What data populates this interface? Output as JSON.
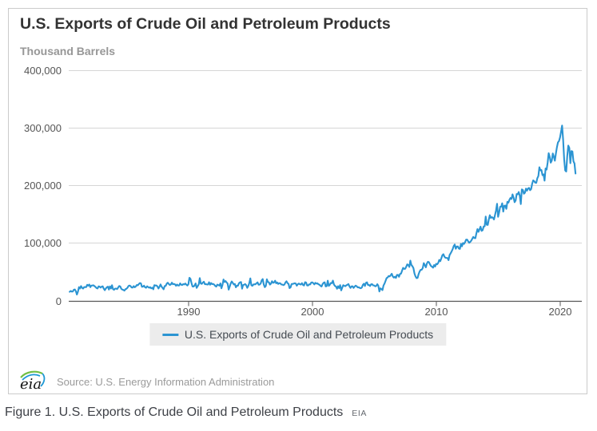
{
  "card": {
    "title": "U.S. Exports of Crude Oil and Petroleum Products",
    "units_label": "Thousand Barrels",
    "legend": {
      "label": "U.S. Exports of Crude Oil and Petroleum Products"
    },
    "source": "Source: U.S. Energy Information Administration",
    "logo_text": "eia"
  },
  "caption": {
    "text": "Figure 1. U.S. Exports of Crude Oil and Petroleum Products",
    "suffix": "EIA"
  },
  "chart_data": {
    "type": "line",
    "title": "U.S. Exports of Crude Oil and Petroleum Products",
    "ylabel": "Thousand Barrels",
    "ylim": [
      0,
      400000
    ],
    "yticks": [
      0,
      100000,
      200000,
      300000,
      400000
    ],
    "ytick_labels": [
      "0",
      "100,000",
      "200,000",
      "300,000",
      "400,000"
    ],
    "xticks": [
      1990,
      2000,
      2010,
      2020
    ],
    "x_range": [
      1980.4,
      2021.25
    ],
    "frequency": "monthly",
    "grid": "horizontal",
    "legend_position": "bottom-center",
    "series": [
      {
        "name": "U.S. Exports of Crude Oil and Petroleum Products",
        "color": "#2b94d2",
        "anchors": [
          [
            1980.4,
            16000
          ],
          [
            1981,
            21000
          ],
          [
            1982,
            26000
          ],
          [
            1983,
            22000
          ],
          [
            1984,
            24000
          ],
          [
            1985,
            22000
          ],
          [
            1986,
            27000
          ],
          [
            1987,
            25000
          ],
          [
            1988,
            27000
          ],
          [
            1989,
            29000
          ],
          [
            1989.9,
            30000
          ],
          [
            1990.1,
            40000
          ],
          [
            1990.3,
            28000
          ],
          [
            1991,
            31000
          ],
          [
            1992,
            29000
          ],
          [
            1993,
            31000
          ],
          [
            1994,
            28000
          ],
          [
            1995,
            28000
          ],
          [
            1996,
            30000
          ],
          [
            1997,
            31000
          ],
          [
            1998,
            30000
          ],
          [
            1999,
            29000
          ],
          [
            2000,
            31000
          ],
          [
            2001,
            30000
          ],
          [
            2002,
            27000
          ],
          [
            2003,
            27000
          ],
          [
            2004,
            26000
          ],
          [
            2005,
            30000
          ],
          [
            2005.65,
            21000
          ],
          [
            2006,
            40000
          ],
          [
            2007,
            46000
          ],
          [
            2007.9,
            66000
          ],
          [
            2008.4,
            42000
          ],
          [
            2009,
            62000
          ],
          [
            2010,
            64000
          ],
          [
            2011,
            84000
          ],
          [
            2012,
            98000
          ],
          [
            2013,
            113000
          ],
          [
            2014,
            132000
          ],
          [
            2015,
            158000
          ],
          [
            2016,
            175000
          ],
          [
            2017,
            188000
          ],
          [
            2018,
            215000
          ],
          [
            2018.5,
            222000
          ],
          [
            2018.75,
            205000
          ],
          [
            2019.05,
            250000
          ],
          [
            2019.5,
            252000
          ],
          [
            2019.83,
            272000
          ],
          [
            2020.18,
            308000
          ],
          [
            2020.3,
            252000
          ],
          [
            2020.45,
            212000
          ],
          [
            2020.58,
            260000
          ],
          [
            2020.7,
            276000
          ],
          [
            2020.82,
            243000
          ],
          [
            2020.93,
            270000
          ],
          [
            2021.05,
            250000
          ],
          [
            2021.15,
            238000
          ],
          [
            2021.25,
            216000
          ]
        ]
      }
    ]
  }
}
